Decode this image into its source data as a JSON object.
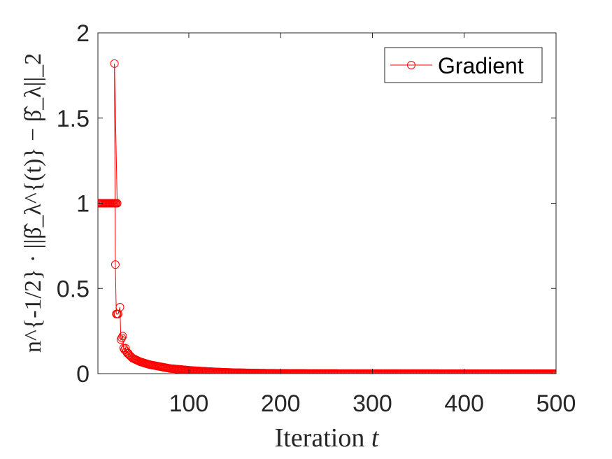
{
  "chart_data": {
    "type": "line",
    "xlabel_text": "Iteration ",
    "xlabel_var": "t",
    "ylabel": "n^{-1/2} · ||β̂_λ^{(t)} − β̂_λ||_2",
    "xlim": [
      1,
      500
    ],
    "ylim": [
      0,
      2
    ],
    "xticks": [
      "100",
      "200",
      "300",
      "400",
      "500"
    ],
    "yticks": [
      "0",
      "0.5",
      "1",
      "1.5",
      "2"
    ],
    "grid": false,
    "legend_position": "top-right",
    "series": [
      {
        "name": "Gradient",
        "color": "#ff0000",
        "marker": "circle",
        "points": [
          [
            1,
            1.0
          ],
          [
            2,
            1.0
          ],
          [
            3,
            1.0
          ],
          [
            4,
            1.0
          ],
          [
            5,
            1.0
          ],
          [
            6,
            1.0
          ],
          [
            7,
            1.0
          ],
          [
            8,
            1.0
          ],
          [
            9,
            1.0
          ],
          [
            10,
            1.0
          ],
          [
            11,
            1.0
          ],
          [
            12,
            1.0
          ],
          [
            13,
            1.0
          ],
          [
            14,
            1.0
          ],
          [
            15,
            1.0
          ],
          [
            16,
            1.0
          ],
          [
            17,
            1.0
          ],
          [
            18,
            1.0
          ],
          [
            19,
            1.0
          ],
          [
            20,
            1.0
          ],
          [
            21,
            1.0
          ],
          [
            22,
            1.0
          ],
          [
            19,
            1.82
          ],
          [
            20,
            0.64
          ],
          [
            21,
            0.35
          ],
          [
            22,
            0.35
          ],
          [
            23,
            0.35
          ],
          [
            25,
            0.39
          ],
          [
            26,
            0.2
          ],
          [
            27,
            0.21
          ],
          [
            28,
            0.22
          ],
          [
            29,
            0.15
          ],
          [
            30,
            0.14
          ],
          [
            31,
            0.15
          ],
          [
            32,
            0.13
          ],
          [
            33,
            0.12
          ],
          [
            34,
            0.12
          ],
          [
            35,
            0.11
          ],
          [
            37,
            0.1
          ],
          [
            39,
            0.09
          ],
          [
            41,
            0.085
          ],
          [
            43,
            0.08
          ],
          [
            45,
            0.075
          ],
          [
            47,
            0.07
          ],
          [
            50,
            0.065
          ],
          [
            53,
            0.06
          ],
          [
            56,
            0.055
          ],
          [
            60,
            0.05
          ],
          [
            65,
            0.045
          ],
          [
            70,
            0.04
          ],
          [
            75,
            0.035
          ],
          [
            80,
            0.03
          ],
          [
            90,
            0.025
          ],
          [
            100,
            0.02
          ],
          [
            110,
            0.016
          ],
          [
            120,
            0.013
          ],
          [
            130,
            0.01
          ],
          [
            140,
            0.008
          ],
          [
            150,
            0.006
          ],
          [
            160,
            0.005
          ],
          [
            170,
            0.004
          ],
          [
            180,
            0.003
          ],
          [
            190,
            0.0025
          ],
          [
            200,
            0.002
          ],
          [
            220,
            0.0015
          ],
          [
            240,
            0.001
          ],
          [
            260,
            0.0008
          ],
          [
            280,
            0.0006
          ],
          [
            300,
            0.0005
          ],
          [
            330,
            0.0004
          ],
          [
            360,
            0.0003
          ],
          [
            390,
            0.0002
          ],
          [
            420,
            0.00015
          ],
          [
            450,
            0.0001
          ],
          [
            480,
            5e-05
          ],
          [
            500,
            2e-05
          ]
        ]
      }
    ]
  }
}
